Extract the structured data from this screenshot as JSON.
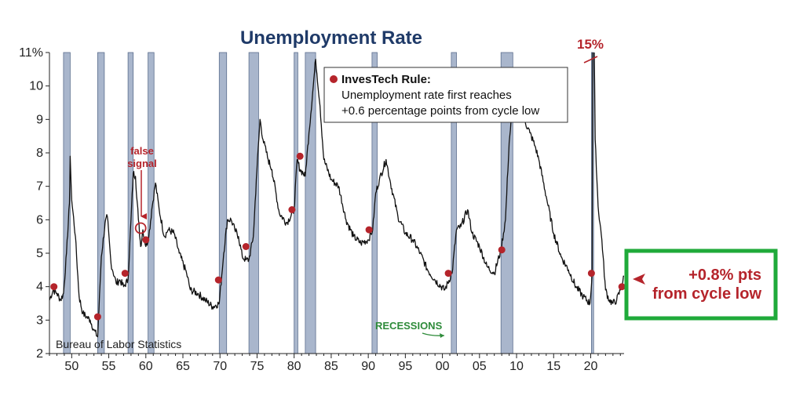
{
  "chart_data": {
    "type": "line",
    "title": "Unemployment Rate",
    "source": "Bureau of Labor Statistics",
    "xlim": [
      1947,
      2024.5
    ],
    "ylim": [
      2,
      11
    ],
    "x_ticks": [
      {
        "value": 1950,
        "label": "50"
      },
      {
        "value": 1955,
        "label": "55"
      },
      {
        "value": 1960,
        "label": "60"
      },
      {
        "value": 1965,
        "label": "65"
      },
      {
        "value": 1970,
        "label": "70"
      },
      {
        "value": 1975,
        "label": "75"
      },
      {
        "value": 1980,
        "label": "80"
      },
      {
        "value": 1985,
        "label": "85"
      },
      {
        "value": 1990,
        "label": "90"
      },
      {
        "value": 1995,
        "label": "95"
      },
      {
        "value": 2000,
        "label": "00"
      },
      {
        "value": 2005,
        "label": "05"
      },
      {
        "value": 2010,
        "label": "10"
      },
      {
        "value": 2015,
        "label": "15"
      },
      {
        "value": 2020,
        "label": "20"
      }
    ],
    "y_ticks": [
      {
        "value": 2,
        "label": "2"
      },
      {
        "value": 3,
        "label": "3"
      },
      {
        "value": 4,
        "label": "4"
      },
      {
        "value": 5,
        "label": "5"
      },
      {
        "value": 6,
        "label": "6"
      },
      {
        "value": 7,
        "label": "7"
      },
      {
        "value": 8,
        "label": "8"
      },
      {
        "value": 9,
        "label": "9"
      },
      {
        "value": 10,
        "label": "10"
      },
      {
        "value": 11,
        "label": "11%"
      }
    ],
    "recessions": [
      [
        1948.9,
        1949.8
      ],
      [
        1953.5,
        1954.4
      ],
      [
        1957.6,
        1958.3
      ],
      [
        1960.3,
        1961.1
      ],
      [
        1969.9,
        1970.9
      ],
      [
        1973.9,
        1975.2
      ],
      [
        1980.0,
        1980.5
      ],
      [
        1981.5,
        1982.9
      ],
      [
        1990.5,
        1991.2
      ],
      [
        2001.2,
        2001.9
      ],
      [
        2007.9,
        2009.5
      ],
      [
        2020.1,
        2020.4
      ]
    ],
    "series": [
      {
        "values": [
          [
            1947.0,
            3.6
          ],
          [
            1947.5,
            3.9
          ],
          [
            1948.0,
            3.8
          ],
          [
            1948.5,
            3.6
          ],
          [
            1948.9,
            3.8
          ],
          [
            1949.3,
            5.0
          ],
          [
            1949.7,
            6.5
          ],
          [
            1949.8,
            7.9
          ],
          [
            1950.0,
            6.6
          ],
          [
            1950.5,
            5.5
          ],
          [
            1951.0,
            3.7
          ],
          [
            1951.5,
            3.2
          ],
          [
            1952.0,
            3.1
          ],
          [
            1952.5,
            3.0
          ],
          [
            1953.0,
            2.7
          ],
          [
            1953.5,
            2.5
          ],
          [
            1954.0,
            4.9
          ],
          [
            1954.5,
            5.9
          ],
          [
            1954.8,
            6.1
          ],
          [
            1955.3,
            4.7
          ],
          [
            1956.0,
            4.1
          ],
          [
            1956.5,
            4.2
          ],
          [
            1957.0,
            4.0
          ],
          [
            1957.6,
            4.2
          ],
          [
            1958.0,
            6.0
          ],
          [
            1958.3,
            7.4
          ],
          [
            1958.6,
            7.3
          ],
          [
            1959.0,
            6.0
          ],
          [
            1959.3,
            5.2
          ],
          [
            1959.6,
            5.7
          ],
          [
            1960.0,
            5.2
          ],
          [
            1960.4,
            5.5
          ],
          [
            1960.8,
            6.3
          ],
          [
            1961.3,
            7.1
          ],
          [
            1961.8,
            6.3
          ],
          [
            1962.5,
            5.5
          ],
          [
            1963.0,
            5.7
          ],
          [
            1963.8,
            5.6
          ],
          [
            1964.5,
            5.0
          ],
          [
            1965.5,
            4.4
          ],
          [
            1966.0,
            3.9
          ],
          [
            1967.0,
            3.8
          ],
          [
            1968.0,
            3.6
          ],
          [
            1969.0,
            3.4
          ],
          [
            1969.9,
            3.5
          ],
          [
            1970.5,
            5.0
          ],
          [
            1971.0,
            6.0
          ],
          [
            1971.5,
            6.0
          ],
          [
            1972.0,
            5.7
          ],
          [
            1972.5,
            5.5
          ],
          [
            1973.0,
            4.9
          ],
          [
            1973.5,
            4.8
          ],
          [
            1973.9,
            4.8
          ],
          [
            1974.5,
            5.5
          ],
          [
            1974.9,
            7.2
          ],
          [
            1975.4,
            9.0
          ],
          [
            1975.8,
            8.4
          ],
          [
            1976.5,
            7.8
          ],
          [
            1977.0,
            7.5
          ],
          [
            1978.0,
            6.2
          ],
          [
            1979.0,
            5.9
          ],
          [
            1980.0,
            6.3
          ],
          [
            1980.4,
            7.8
          ],
          [
            1980.8,
            7.5
          ],
          [
            1981.2,
            7.4
          ],
          [
            1981.5,
            7.3
          ],
          [
            1982.0,
            8.6
          ],
          [
            1982.5,
            9.8
          ],
          [
            1982.9,
            10.8
          ],
          [
            1983.5,
            9.4
          ],
          [
            1984.0,
            7.8
          ],
          [
            1985.0,
            7.2
          ],
          [
            1986.0,
            7.0
          ],
          [
            1987.0,
            6.0
          ],
          [
            1988.0,
            5.5
          ],
          [
            1989.0,
            5.3
          ],
          [
            1990.0,
            5.4
          ],
          [
            1990.6,
            5.7
          ],
          [
            1991.0,
            6.8
          ],
          [
            1991.5,
            7.2
          ],
          [
            1992.4,
            7.8
          ],
          [
            1993.0,
            7.1
          ],
          [
            1994.0,
            6.1
          ],
          [
            1995.0,
            5.6
          ],
          [
            1996.0,
            5.4
          ],
          [
            1997.0,
            5.0
          ],
          [
            1998.0,
            4.5
          ],
          [
            1999.0,
            4.2
          ],
          [
            2000.3,
            3.9
          ],
          [
            2001.3,
            4.4
          ],
          [
            2001.9,
            5.7
          ],
          [
            2002.5,
            5.8
          ],
          [
            2003.4,
            6.3
          ],
          [
            2004.0,
            5.6
          ],
          [
            2005.0,
            5.2
          ],
          [
            2006.0,
            4.6
          ],
          [
            2007.0,
            4.4
          ],
          [
            2007.9,
            5.1
          ],
          [
            2008.5,
            6.0
          ],
          [
            2009.0,
            8.3
          ],
          [
            2009.5,
            9.5
          ],
          [
            2009.8,
            10.0
          ],
          [
            2010.5,
            9.5
          ],
          [
            2011.0,
            9.0
          ],
          [
            2011.8,
            8.6
          ],
          [
            2012.5,
            8.2
          ],
          [
            2013.0,
            7.8
          ],
          [
            2014.0,
            6.7
          ],
          [
            2015.0,
            5.6
          ],
          [
            2016.0,
            4.9
          ],
          [
            2017.0,
            4.5
          ],
          [
            2018.0,
            4.0
          ],
          [
            2019.0,
            3.7
          ],
          [
            2019.9,
            3.5
          ],
          [
            2020.2,
            4.4
          ],
          [
            2020.3,
            14.7
          ],
          [
            2020.6,
            8.4
          ],
          [
            2021.0,
            6.4
          ],
          [
            2021.5,
            5.4
          ],
          [
            2022.0,
            3.9
          ],
          [
            2022.5,
            3.6
          ],
          [
            2023.0,
            3.5
          ],
          [
            2023.5,
            3.6
          ],
          [
            2024.0,
            3.9
          ],
          [
            2024.5,
            4.3
          ]
        ]
      }
    ],
    "signal_points": [
      [
        1947.6,
        4.0
      ],
      [
        1953.5,
        3.1
      ],
      [
        1957.2,
        4.4
      ],
      [
        1960.0,
        5.4
      ],
      [
        1969.8,
        4.2
      ],
      [
        1973.5,
        5.2
      ],
      [
        1979.7,
        6.3
      ],
      [
        1980.8,
        7.9
      ],
      [
        1990.1,
        5.7
      ],
      [
        2000.8,
        4.4
      ],
      [
        2008.0,
        5.1
      ],
      [
        2020.1,
        4.4
      ],
      [
        2024.2,
        4.0
      ]
    ],
    "false_signal": {
      "x": 1959.3,
      "y": 5.75,
      "label_line1": "false",
      "label_line2": "signal"
    },
    "peak_label": "15%",
    "legend": {
      "title": "InvesTech Rule:",
      "line1": "Unemployment rate first reaches",
      "line2": "+0.6 percentage points from cycle low"
    },
    "recession_label": "RECESSIONS",
    "callout": {
      "line1": "+0.8% pts",
      "line2": "from cycle low"
    },
    "colors": {
      "line": "#111111",
      "recession_fill": "#a9b6cc",
      "recession_stroke": "#5c6f8e",
      "signal": "#b5242b",
      "title": "#1f3a68",
      "callout_border": "#1faa3a",
      "recession_label": "#2e8b3a"
    }
  }
}
